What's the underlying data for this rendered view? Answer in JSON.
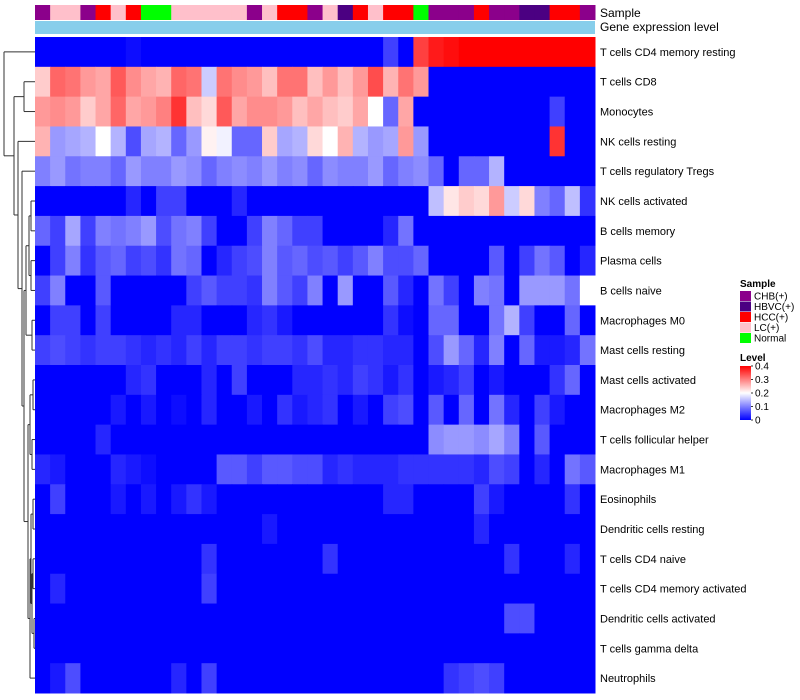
{
  "chart_data": {
    "type": "heatmap",
    "annotation_labels": [
      "Sample",
      "Gene expression level"
    ],
    "rows": [
      "T cells CD4 memory resting",
      "T cells CD8",
      "Monocytes",
      "NK cells resting",
      "T cells regulatory  Tregs",
      "NK cells activated",
      "B cells memory",
      "Plasma cells",
      "B cells naive",
      "Macrophages M0",
      "Mast cells resting",
      "Mast cells activated",
      "Macrophages M2",
      "T cells follicular helper",
      "Macrophages M1",
      "Eosinophils",
      "Dendritic cells resting",
      "T cells CD4 naive",
      "T cells CD4 memory activated",
      "Dendritic cells activated",
      "T cells gamma delta",
      "Neutrophils"
    ],
    "sample_groups": [
      "CHB(+)",
      "LC(+)",
      "LC(+)",
      "CHB(+)",
      "HCC(+)",
      "LC(+)",
      "HCC(+)",
      "Normal",
      "Normal",
      "LC(+)",
      "LC(+)",
      "LC(+)",
      "LC(+)",
      "LC(+)",
      "CHB(+)",
      "LC(+)",
      "HCC(+)",
      "HCC(+)",
      "CHB(+)",
      "LC(+)",
      "HBVC(+)",
      "HCC(+)",
      "LC(+)",
      "HCC(+)",
      "HCC(+)",
      "Normal",
      "CHB(+)",
      "CHB(+)",
      "CHB(+)",
      "HCC(+)",
      "CHB(+)",
      "CHB(+)",
      "HBVC(+)",
      "HBVC(+)",
      "HCC(+)",
      "HCC(+)",
      "CHB(+)"
    ],
    "gene_expression_level": "all samples in one level",
    "values": [
      [
        0,
        0,
        0,
        0,
        0,
        0,
        0.01,
        0,
        0,
        0,
        0,
        0,
        0,
        0,
        0,
        0,
        0,
        0,
        0,
        0,
        0,
        0,
        0,
        0.05,
        0,
        0.35,
        0.38,
        0.39,
        0.45,
        0.4,
        0.45,
        0.45,
        0.45,
        0.45,
        0.45,
        0.45,
        0.45
      ],
      [
        0.24,
        0.32,
        0.31,
        0.28,
        0.27,
        0.33,
        0.29,
        0.27,
        0.26,
        0.32,
        0.31,
        0.16,
        0.31,
        0.29,
        0.28,
        0.25,
        0.31,
        0.31,
        0.25,
        0.28,
        0.25,
        0.28,
        0.34,
        0.26,
        0.31,
        0.28,
        0,
        0,
        0,
        0,
        0,
        0,
        0,
        0,
        0,
        0,
        0
      ],
      [
        0.28,
        0.29,
        0.28,
        0.24,
        0.27,
        0.32,
        0.27,
        0.28,
        0.3,
        0.36,
        0.25,
        0.23,
        0.33,
        0.27,
        0.29,
        0.29,
        0.28,
        0.25,
        0.27,
        0.25,
        0.24,
        0.27,
        0.2,
        0.08,
        0.27,
        0,
        0,
        0,
        0,
        0,
        0,
        0,
        0,
        0,
        0.05,
        0,
        0
      ],
      [
        0.26,
        0.12,
        0.13,
        0.14,
        0.2,
        0.14,
        0.06,
        0.13,
        0.14,
        0.08,
        0.12,
        0.21,
        0.19,
        0.08,
        0.08,
        0.24,
        0.13,
        0.14,
        0.23,
        0.2,
        0.26,
        0.14,
        0.12,
        0.13,
        0.28,
        0.12,
        0,
        0,
        0,
        0,
        0,
        0,
        0,
        0,
        0.36,
        0,
        0
      ],
      [
        0.1,
        0.12,
        0.09,
        0.1,
        0.1,
        0.08,
        0.12,
        0.1,
        0.1,
        0.12,
        0.11,
        0.08,
        0.1,
        0.11,
        0.1,
        0.12,
        0.1,
        0.11,
        0.08,
        0.11,
        0.1,
        0.1,
        0.12,
        0.08,
        0.1,
        0.11,
        0.08,
        0,
        0.08,
        0.08,
        0.14,
        0,
        0,
        0,
        0,
        0,
        0
      ],
      [
        0,
        0,
        0,
        0,
        0,
        0,
        0.03,
        0,
        0.05,
        0.05,
        0,
        0,
        0,
        0.03,
        0,
        0,
        0,
        0,
        0,
        0,
        0,
        0,
        0,
        0,
        0,
        0,
        0.15,
        0.22,
        0.24,
        0.23,
        0.28,
        0.16,
        0.23,
        0.1,
        0.08,
        0.15,
        0.04
      ],
      [
        0.08,
        0.05,
        0.13,
        0.05,
        0.1,
        0.09,
        0.1,
        0.12,
        0.06,
        0.09,
        0.1,
        0.05,
        0,
        0,
        0.05,
        0.1,
        0.08,
        0.05,
        0.05,
        0,
        0,
        0,
        0,
        0.03,
        0.09,
        0,
        0,
        0,
        0,
        0,
        0,
        0,
        0,
        0,
        0,
        0,
        0
      ],
      [
        0,
        0.05,
        0.1,
        0.04,
        0.07,
        0.08,
        0.05,
        0.06,
        0.04,
        0.09,
        0.08,
        0,
        0.03,
        0.05,
        0.06,
        0.1,
        0.07,
        0.08,
        0.06,
        0.07,
        0.05,
        0.07,
        0.1,
        0.06,
        0.06,
        0.08,
        0,
        0,
        0,
        0,
        0.07,
        0,
        0.05,
        0.09,
        0.07,
        0,
        0.03
      ],
      [
        0.05,
        0.1,
        0,
        0,
        0.07,
        0,
        0,
        0,
        0,
        0,
        0.05,
        0.07,
        0.05,
        0.05,
        0.04,
        0.1,
        0.07,
        0.05,
        0.1,
        0,
        0.12,
        0,
        0,
        0.07,
        0.03,
        0,
        0.09,
        0.05,
        0,
        0.1,
        0.09,
        0,
        0.12,
        0.12,
        0.12,
        0.09,
        0.2
      ],
      [
        0,
        0.05,
        0.05,
        0,
        0.05,
        0,
        0,
        0,
        0,
        0.03,
        0.03,
        0,
        0,
        0,
        0.03,
        0.04,
        0.02,
        0,
        0,
        0,
        0,
        0,
        0,
        0.04,
        0.01,
        0,
        0.08,
        0.08,
        0,
        0,
        0.09,
        0.14,
        0.05,
        0,
        0,
        0.08,
        0
      ],
      [
        0.05,
        0.06,
        0.05,
        0.04,
        0.05,
        0.05,
        0.04,
        0.03,
        0.04,
        0.03,
        0.05,
        0.03,
        0.05,
        0.05,
        0.04,
        0.05,
        0.05,
        0.04,
        0.06,
        0.03,
        0.03,
        0.04,
        0.04,
        0.03,
        0.03,
        0,
        0.06,
        0.12,
        0.08,
        0.03,
        0.1,
        0,
        0.08,
        0.02,
        0.02,
        0.03,
        0.09
      ],
      [
        0,
        0,
        0,
        0,
        0,
        0,
        0.03,
        0.04,
        0,
        0,
        0,
        0.03,
        0,
        0.05,
        0,
        0,
        0,
        0.03,
        0.03,
        0.04,
        0.03,
        0.05,
        0.04,
        0.02,
        0.04,
        0,
        0.02,
        0.03,
        0.05,
        0,
        0.02,
        0,
        0,
        0,
        0.04,
        0.08,
        0
      ],
      [
        0,
        0,
        0,
        0,
        0,
        0.02,
        0,
        0.02,
        0,
        0.01,
        0,
        0.03,
        0,
        0,
        0.02,
        0,
        0.04,
        0.02,
        0.03,
        0.04,
        0,
        0.02,
        0,
        0.05,
        0.06,
        0,
        0.07,
        0,
        0.08,
        0,
        0.09,
        0.03,
        0,
        0.05,
        0.02,
        0,
        0
      ],
      [
        0,
        0,
        0,
        0,
        0.03,
        0,
        0,
        0,
        0,
        0,
        0,
        0,
        0,
        0,
        0,
        0,
        0,
        0,
        0,
        0,
        0,
        0,
        0,
        0,
        0,
        0,
        0.11,
        0.12,
        0.12,
        0.11,
        0.13,
        0.1,
        0,
        0.07,
        0,
        0,
        0
      ],
      [
        0.03,
        0.02,
        0,
        0,
        0,
        0.03,
        0.02,
        0.01,
        0,
        0,
        0,
        0,
        0.07,
        0.07,
        0.05,
        0.07,
        0.07,
        0.06,
        0.06,
        0.03,
        0.04,
        0.03,
        0.03,
        0.03,
        0.04,
        0.04,
        0.04,
        0.04,
        0.04,
        0.03,
        0.06,
        0.05,
        0,
        0.03,
        0,
        0.09,
        0.07
      ],
      [
        0,
        0.05,
        0,
        0,
        0,
        0.02,
        0,
        0.02,
        0,
        0.02,
        0.04,
        0.02,
        0,
        0,
        0,
        0,
        0,
        0,
        0,
        0,
        0,
        0,
        0,
        0.03,
        0.03,
        0,
        0,
        0,
        0,
        0.05,
        0.02,
        0,
        0,
        0,
        0,
        0.04,
        0
      ],
      [
        0,
        0,
        0,
        0,
        0,
        0,
        0,
        0,
        0,
        0,
        0,
        0,
        0,
        0,
        0,
        0.02,
        0,
        0,
        0,
        0,
        0,
        0,
        0,
        0,
        0,
        0,
        0,
        0,
        0,
        0.03,
        0,
        0,
        0,
        0,
        0,
        0,
        0
      ],
      [
        0,
        0,
        0,
        0,
        0,
        0,
        0,
        0,
        0,
        0,
        0,
        0.04,
        0,
        0,
        0,
        0,
        0,
        0,
        0,
        0.04,
        0,
        0,
        0,
        0,
        0,
        0,
        0,
        0,
        0,
        0,
        0,
        0.04,
        0,
        0,
        0,
        0.03,
        0
      ],
      [
        0,
        0.03,
        0,
        0,
        0,
        0,
        0,
        0,
        0,
        0,
        0,
        0.05,
        0,
        0,
        0,
        0,
        0,
        0,
        0,
        0,
        0,
        0,
        0,
        0,
        0,
        0,
        0,
        0,
        0,
        0,
        0,
        0,
        0,
        0,
        0,
        0,
        0
      ],
      [
        0,
        0,
        0,
        0,
        0,
        0,
        0,
        0,
        0,
        0,
        0,
        0,
        0,
        0,
        0,
        0,
        0,
        0,
        0,
        0,
        0,
        0,
        0,
        0,
        0,
        0,
        0,
        0,
        0,
        0,
        0,
        0.06,
        0.06,
        0,
        0,
        0,
        0
      ],
      [
        0,
        0,
        0,
        0,
        0,
        0,
        0,
        0,
        0,
        0,
        0,
        0,
        0,
        0,
        0,
        0,
        0,
        0,
        0,
        0,
        0,
        0,
        0,
        0,
        0,
        0,
        0,
        0,
        0,
        0,
        0,
        0,
        0,
        0,
        0,
        0,
        0
      ],
      [
        0,
        0.02,
        0.06,
        0,
        0,
        0,
        0,
        0,
        0,
        0.03,
        0,
        0.05,
        0,
        0,
        0,
        0,
        0,
        0,
        0,
        0,
        0,
        0,
        0,
        0,
        0,
        0,
        0,
        0.04,
        0.05,
        0.06,
        0.05,
        0,
        0,
        0,
        0,
        0,
        0
      ]
    ],
    "legend_sample": {
      "title": "Sample",
      "items": [
        {
          "label": "CHB(+)",
          "color": "#8B008B"
        },
        {
          "label": "HBVC(+)",
          "color": "#4B0082"
        },
        {
          "label": "HCC(+)",
          "color": "#FF0000"
        },
        {
          "label": "LC(+)",
          "color": "#FFC0CB"
        },
        {
          "label": "Normal",
          "color": "#00FF00"
        }
      ]
    },
    "legend_level": {
      "title": "Level",
      "ticks": [
        "0.4",
        "0.3",
        "0.2",
        "0.1",
        "0"
      ],
      "range": [
        0,
        0.4
      ],
      "colors": {
        "low": "#0000FF",
        "mid": "#FFFFFF",
        "high": "#FF0000"
      }
    },
    "gene_level_color": "#87CEEB"
  }
}
